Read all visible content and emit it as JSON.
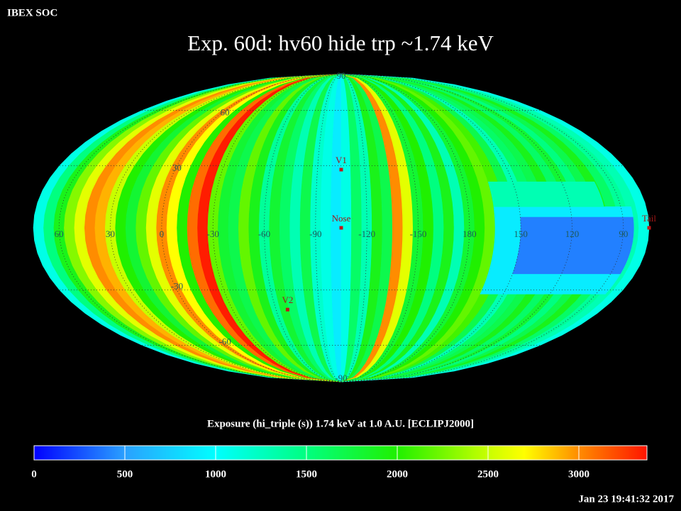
{
  "header": "IBEX SOC",
  "timestamp": "Jan 23 19:41:32 2017",
  "chart_data": {
    "type": "mollweide",
    "title": "Exp.   60d: hv60 hide trp ~1.74 keV",
    "center_lon": -105,
    "strips": {
      "lon": [
        72,
        66,
        60,
        54,
        48,
        42,
        36,
        30,
        24,
        18,
        12,
        6,
        0,
        -6,
        -12,
        -18,
        -24,
        -30,
        -36,
        -42,
        -48,
        -54,
        -60,
        -66,
        -72,
        -78,
        -84,
        -90,
        -96,
        -102,
        -108,
        -114,
        -120,
        -126,
        -132,
        -138,
        -144,
        -150,
        -156,
        -162,
        -168,
        -174,
        -180,
        174,
        168,
        162,
        156,
        150,
        144,
        138,
        132,
        126,
        120,
        114,
        108,
        102,
        96,
        90,
        84,
        78
      ],
      "values": [
        1100,
        1500,
        1900,
        2300,
        2600,
        3000,
        2900,
        2500,
        2000,
        1800,
        2200,
        2600,
        3000,
        2700,
        2000,
        3100,
        3350,
        2200,
        1800,
        1700,
        2200,
        1900,
        1400,
        1800,
        1600,
        1300,
        1700,
        1200,
        1100,
        900,
        1100,
        1600,
        1300,
        1900,
        1700,
        3000,
        2600,
        1800,
        2000,
        1500,
        1900,
        1300,
        1800,
        2000,
        2200,
        2100,
        1700,
        1300,
        1600,
        1700,
        1900,
        1600,
        1800,
        1500,
        1700,
        1900,
        1600,
        1400,
        1300,
        1100
      ]
    },
    "patches": [
      {
        "lon": [
          165,
          84
        ],
        "lat": [
          -32,
          10
        ],
        "value": 900
      },
      {
        "lon": [
          165,
          100
        ],
        "lat": [
          10,
          22
        ],
        "value": 1300
      },
      {
        "lon": [
          150,
          84
        ],
        "lat": [
          -22,
          5
        ],
        "value": 400
      }
    ],
    "lon_labels": [
      60,
      30,
      0,
      -30,
      -60,
      -90,
      -120,
      -150,
      180,
      150,
      120,
      90
    ],
    "lat_labels": [
      90,
      60,
      30,
      -30,
      -60,
      -90
    ],
    "markers": [
      {
        "label": "V1",
        "lon": -105,
        "lat": 28
      },
      {
        "label": "Nose",
        "lon": -105,
        "lat": 0
      },
      {
        "label": "V2",
        "lon": -68,
        "lat": -40
      },
      {
        "label": "Tail",
        "lon": 75,
        "lat": 0
      }
    ],
    "colorbar": {
      "label": "Exposure (hi_triple (s))  1.74 keV at 1.0 A.U. [ECLIPJ2000]",
      "range": [
        0,
        3375
      ],
      "ticks": [
        0,
        500,
        1000,
        1500,
        2000,
        2500,
        3000
      ]
    },
    "colorscale": [
      {
        "value": 0,
        "color": "#0000ff"
      },
      {
        "value": 500,
        "color": "#2aa0ff"
      },
      {
        "value": 1000,
        "color": "#00ffff"
      },
      {
        "value": 1500,
        "color": "#00ff80"
      },
      {
        "value": 2000,
        "color": "#20f000"
      },
      {
        "value": 2500,
        "color": "#c8ff00"
      },
      {
        "value": 2700,
        "color": "#ffff00"
      },
      {
        "value": 3000,
        "color": "#ff8c00"
      },
      {
        "value": 3375,
        "color": "#ff1400"
      }
    ]
  }
}
